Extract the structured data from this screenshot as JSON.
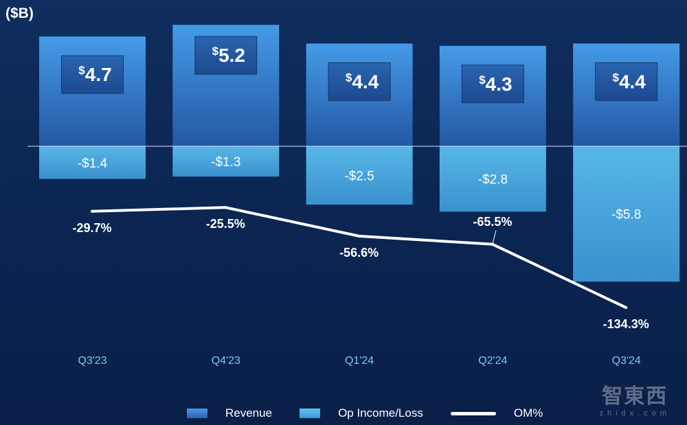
{
  "chart_data": {
    "type": "bar",
    "unit_label": "($B)",
    "categories": [
      "Q3'23",
      "Q4'23",
      "Q1'24",
      "Q2'24",
      "Q3'24"
    ],
    "series": [
      {
        "name": "Revenue",
        "values": [
          4.7,
          5.2,
          4.4,
          4.3,
          4.4
        ],
        "labels": [
          "4.7",
          "5.2",
          "4.4",
          "4.3",
          "4.4"
        ],
        "color": "#3d8fe0"
      },
      {
        "name": "Op Income/Loss",
        "values": [
          -1.4,
          -1.3,
          -2.5,
          -2.8,
          -5.8
        ],
        "labels": [
          "-$1.4",
          "-$1.3",
          "-$2.5",
          "-$2.8",
          "-$5.8"
        ],
        "color": "#4fb6ec"
      },
      {
        "name": "OM%",
        "type": "line",
        "values": [
          -29.7,
          -25.5,
          -56.6,
          -65.5,
          -134.3
        ],
        "labels": [
          "-29.7%",
          "-25.5%",
          "-56.6%",
          "-65.5%",
          "-134.3%"
        ],
        "color": "#ffffff"
      }
    ],
    "currency_symbol": "$",
    "legend_position": "bottom"
  },
  "watermark": {
    "cn": "智東西",
    "en": "zhidx.com"
  }
}
